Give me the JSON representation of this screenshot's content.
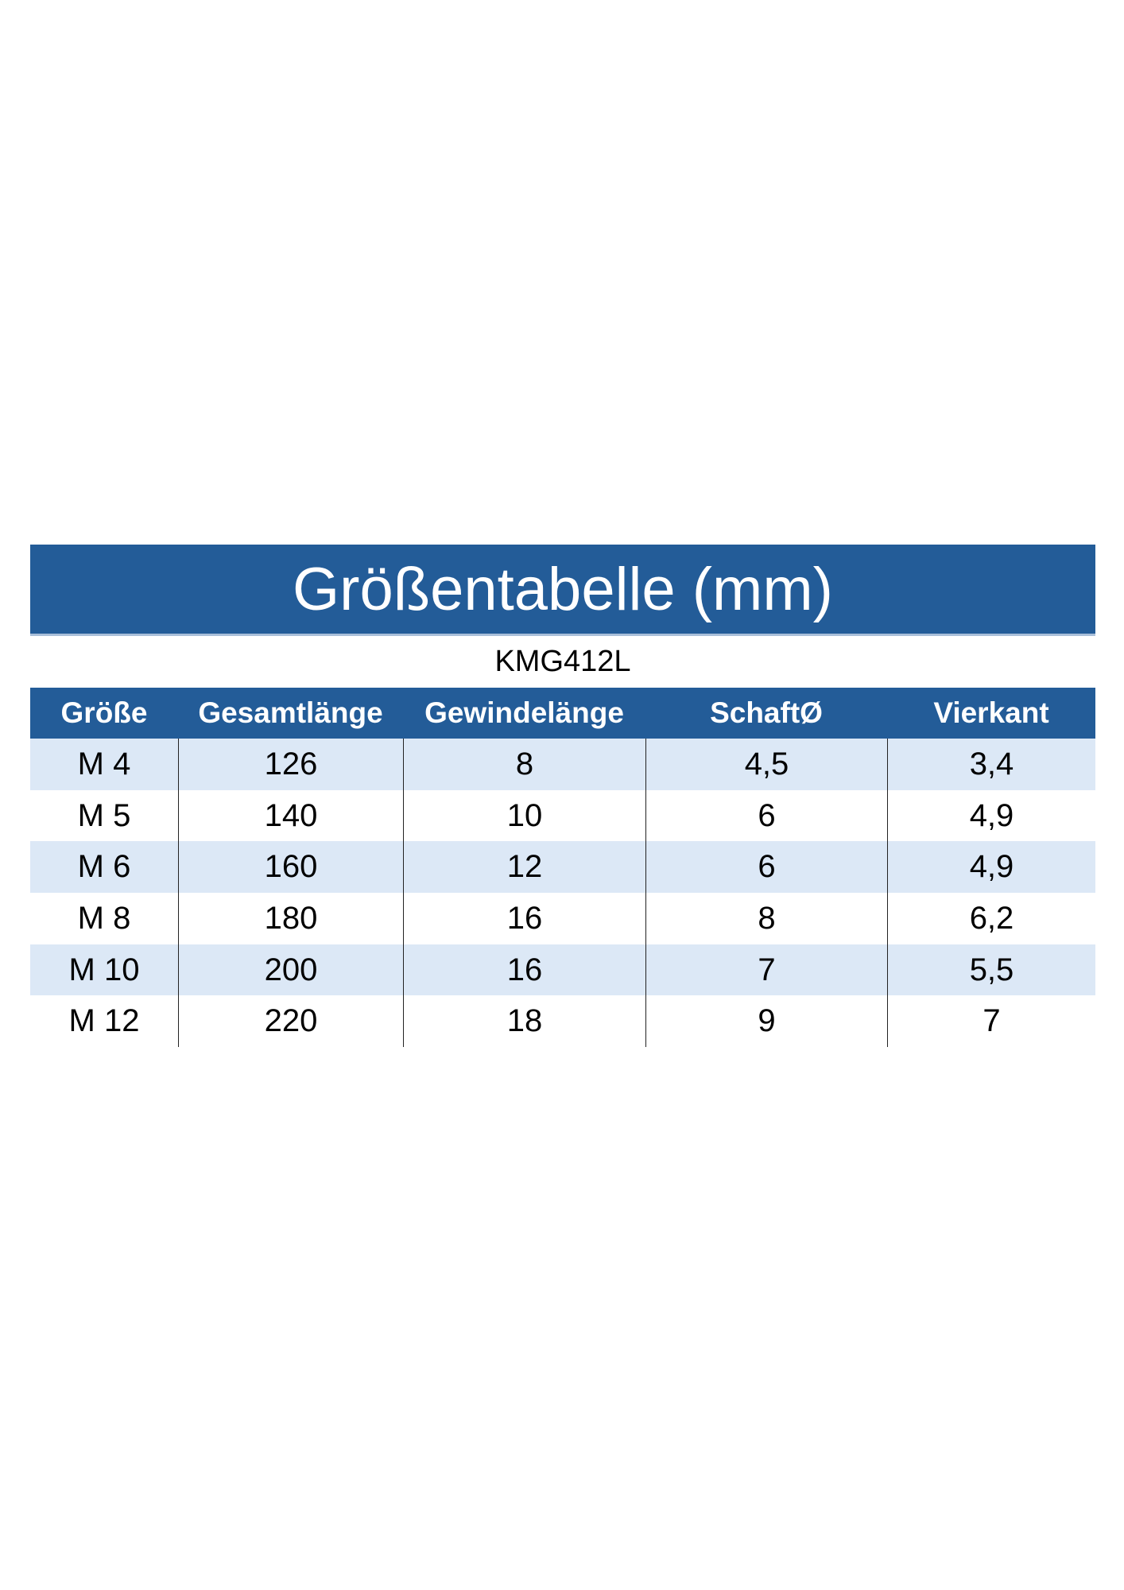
{
  "title": "Größentabelle (mm)",
  "subtitle": "KMG412L",
  "colors": {
    "header": "#235c98",
    "stripe": "#dce8f6"
  },
  "headers": [
    "Größe",
    "Gesamtlänge",
    "Gewindelänge",
    "SchaftØ",
    "Vierkant"
  ],
  "rows": [
    [
      "M 4",
      "126",
      "8",
      "4,5",
      "3,4"
    ],
    [
      "M 5",
      "140",
      "10",
      "6",
      "4,9"
    ],
    [
      "M 6",
      "160",
      "12",
      "6",
      "4,9"
    ],
    [
      "M 8",
      "180",
      "16",
      "8",
      "6,2"
    ],
    [
      "M 10",
      "200",
      "16",
      "7",
      "5,5"
    ],
    [
      "M 12",
      "220",
      "18",
      "9",
      "7"
    ]
  ]
}
